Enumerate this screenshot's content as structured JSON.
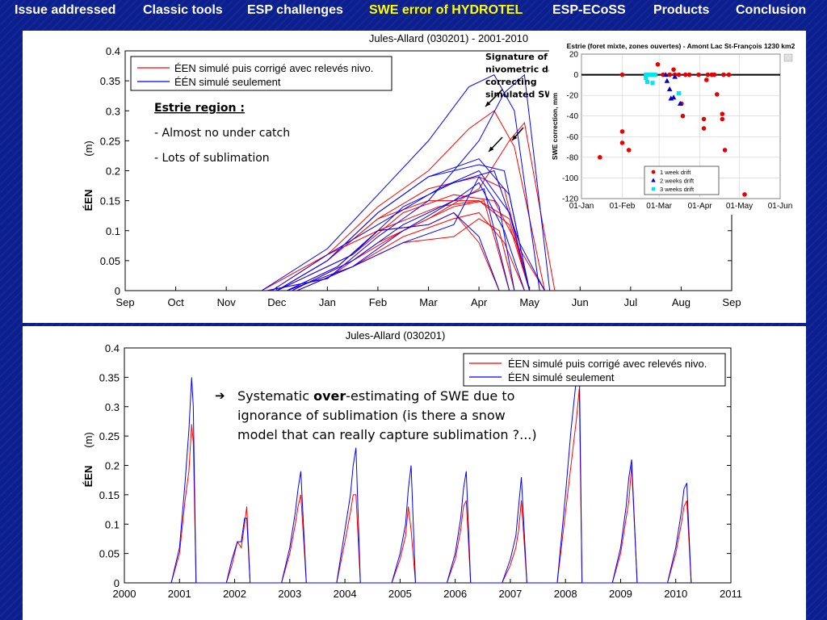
{
  "nav": {
    "items": [
      "Issue addressed",
      "Classic tools",
      "ESP challenges",
      "SWE error of HYDROTEL",
      "ESP-ECoSS",
      "Products",
      "Conclusion"
    ],
    "active_index": 3,
    "active_color": "#ffff00"
  },
  "colors": {
    "background": "#0b1f8f",
    "corrected": "#ff0000",
    "simulated": "#0000ff",
    "one_week": "#e60000",
    "two_weeks": "#0000cc",
    "three_weeks": "#00e5ee"
  },
  "top_panel": {
    "annotation": {
      "region_title": "Estrie region :",
      "bullets": [
        "- Almost no under catch",
        "- Lots of sublimation"
      ]
    },
    "arrow_label": [
      "Signature of",
      "nivometric data",
      "correcting",
      "simulated SWE"
    ]
  },
  "bottom_panel": {
    "note_arrow": "➔",
    "note_lines": [
      [
        "Systematic ",
        "over",
        "-estimating of SWE due to"
      ],
      [
        "ignorance of sublimation (is there a snow"
      ],
      [
        "model that can really capture sublimation ?...)"
      ]
    ]
  },
  "chart_data": [
    {
      "type": "line",
      "title": "Jules-Allard (030201) - 2001-2010",
      "xlabel": "",
      "ylabel": "ÉEN",
      "ylabel_unit": "(m)",
      "x_ticks": [
        "Sep",
        "Oct",
        "Nov",
        "Dec",
        "Jan",
        "Feb",
        "Mar",
        "Apr",
        "May",
        "Jun",
        "Jul",
        "Aug",
        "Sep"
      ],
      "y_ticks": [
        "0",
        "0.05",
        "0.1",
        "0.15",
        "0.2",
        "0.25",
        "0.3",
        "0.35",
        "0.4"
      ],
      "ylim": [
        0,
        0.4
      ],
      "legend_position": "top-left",
      "series": [
        {
          "name": "ÉEN simulé puis corrigé avec relevés nivo.",
          "color": "#ff0000",
          "years": [
            {
              "x": [
                2.8,
                4.0,
                5.0,
                6.0,
                7.0,
                7.6,
                7.9,
                8.5
              ],
              "y": [
                0,
                0.02,
                0.08,
                0.12,
                0.17,
                0.25,
                0.28,
                0
              ]
            },
            {
              "x": [
                3.2,
                4.2,
                5.0,
                6.0,
                6.5,
                7.0,
                7.4
              ],
              "y": [
                0,
                0.04,
                0.1,
                0.11,
                0.13,
                0.08,
                0
              ]
            },
            {
              "x": [
                3.0,
                4.5,
                5.5,
                6.5,
                7.3,
                7.8,
                8.3
              ],
              "y": [
                0,
                0.06,
                0.13,
                0.16,
                0.15,
                0.07,
                0
              ]
            },
            {
              "x": [
                3.0,
                4.0,
                5.0,
                6.0,
                7.0,
                7.6,
                8.0
              ],
              "y": [
                0,
                0.05,
                0.12,
                0.15,
                0.15,
                0.12,
                0
              ]
            },
            {
              "x": [
                3.4,
                4.5,
                5.5,
                6.5,
                7.0,
                7.4,
                7.7
              ],
              "y": [
                0,
                0.04,
                0.08,
                0.09,
                0.12,
                0.1,
                0
              ]
            },
            {
              "x": [
                2.9,
                4.0,
                5.0,
                6.2,
                7.0,
                7.6,
                8.0
              ],
              "y": [
                0,
                0.06,
                0.1,
                0.14,
                0.15,
                0.11,
                0
              ]
            },
            {
              "x": [
                3.2,
                4.5,
                5.5,
                6.5,
                7.0,
                7.5,
                7.9
              ],
              "y": [
                0,
                0.04,
                0.09,
                0.12,
                0.13,
                0.08,
                0
              ]
            },
            {
              "x": [
                2.7,
                4.0,
                5.0,
                6.0,
                6.8,
                7.3,
                7.7,
                8.3
              ],
              "y": [
                0,
                0.06,
                0.14,
                0.2,
                0.27,
                0.3,
                0.24,
                0
              ]
            },
            {
              "x": [
                3.0,
                4.0,
                5.0,
                6.0,
                7.0,
                7.5,
                8.0
              ],
              "y": [
                0,
                0.05,
                0.12,
                0.17,
                0.19,
                0.17,
                0
              ]
            },
            {
              "x": [
                3.3,
                4.5,
                5.5,
                6.5,
                7.1,
                7.6
              ],
              "y": [
                0,
                0.05,
                0.1,
                0.14,
                0.15,
                0
              ]
            }
          ]
        },
        {
          "name": "ÉÉN simulé seulement",
          "color": "#0000ff",
          "years": [
            {
              "x": [
                2.8,
                4.0,
                5.0,
                6.0,
                7.0,
                7.5,
                7.9,
                8.4
              ],
              "y": [
                0,
                0.02,
                0.09,
                0.15,
                0.25,
                0.33,
                0.36,
                0
              ]
            },
            {
              "x": [
                3.2,
                4.2,
                5.0,
                6.0,
                6.5,
                7.0,
                7.4
              ],
              "y": [
                0,
                0.04,
                0.1,
                0.11,
                0.13,
                0.09,
                0
              ]
            },
            {
              "x": [
                3.0,
                4.5,
                5.5,
                6.5,
                7.3,
                7.8,
                8.3
              ],
              "y": [
                0,
                0.06,
                0.14,
                0.18,
                0.2,
                0.08,
                0
              ]
            },
            {
              "x": [
                3.0,
                4.0,
                5.0,
                6.0,
                7.0,
                7.6,
                8.0
              ],
              "y": [
                0,
                0.05,
                0.13,
                0.19,
                0.22,
                0.16,
                0
              ]
            },
            {
              "x": [
                3.4,
                4.5,
                5.5,
                6.5,
                7.0,
                7.4,
                7.7
              ],
              "y": [
                0,
                0.04,
                0.08,
                0.11,
                0.19,
                0.14,
                0
              ]
            },
            {
              "x": [
                2.9,
                4.0,
                5.0,
                6.2,
                7.0,
                7.6,
                8.0
              ],
              "y": [
                0,
                0.06,
                0.11,
                0.17,
                0.2,
                0.13,
                0
              ]
            },
            {
              "x": [
                3.2,
                4.5,
                5.5,
                6.5,
                7.0,
                7.5,
                7.9
              ],
              "y": [
                0,
                0.04,
                0.1,
                0.15,
                0.18,
                0.1,
                0
              ]
            },
            {
              "x": [
                2.7,
                4.0,
                5.0,
                6.0,
                6.8,
                7.3,
                7.7,
                8.2
              ],
              "y": [
                0,
                0.07,
                0.16,
                0.25,
                0.34,
                0.36,
                0.3,
                0
              ]
            },
            {
              "x": [
                3.0,
                4.0,
                5.0,
                6.0,
                7.0,
                7.5,
                8.0
              ],
              "y": [
                0,
                0.05,
                0.13,
                0.19,
                0.21,
                0.2,
                0
              ]
            },
            {
              "x": [
                3.3,
                4.5,
                5.5,
                6.5,
                7.1,
                7.6
              ],
              "y": [
                0,
                0.05,
                0.11,
                0.15,
                0.17,
                0
              ]
            }
          ]
        }
      ]
    },
    {
      "type": "scatter",
      "title": "Estrie (foret mixte, zones ouvertes) - Amont Lac St-François 1230 km2",
      "xlabel": "",
      "ylabel": "SWE correction, mm",
      "x_ticks": [
        "01-Jan",
        "01-Feb",
        "01-Mar",
        "01-Apr",
        "01-May",
        "01-Jun"
      ],
      "y_ticks": [
        "20",
        "0",
        "-20",
        "-40",
        "-60",
        "-80",
        "-100",
        "-120"
      ],
      "xlim_days": [
        0,
        151
      ],
      "ylim": [
        -120,
        20
      ],
      "grid": true,
      "legend_position": "bottom-right",
      "series": [
        {
          "name": "1 week drift",
          "marker": "circle",
          "color": "#e60000",
          "points": [
            [
              14,
              -80
            ],
            [
              31,
              0
            ],
            [
              31,
              -55
            ],
            [
              31,
              -66
            ],
            [
              36,
              -73
            ],
            [
              58,
              10
            ],
            [
              62,
              0
            ],
            [
              67,
              0
            ],
            [
              70,
              5
            ],
            [
              71,
              0
            ],
            [
              74,
              0
            ],
            [
              76,
              -28
            ],
            [
              77,
              -40
            ],
            [
              79,
              0
            ],
            [
              82,
              0
            ],
            [
              89,
              0
            ],
            [
              93,
              -43
            ],
            [
              93,
              -52
            ],
            [
              95,
              -5
            ],
            [
              96,
              0
            ],
            [
              99,
              0
            ],
            [
              101,
              0
            ],
            [
              103,
              -19
            ],
            [
              107,
              -38
            ],
            [
              107,
              -43
            ],
            [
              108,
              0
            ],
            [
              109,
              -73
            ],
            [
              112,
              0
            ],
            [
              124,
              -116
            ]
          ]
        },
        {
          "name": "2 weeks drift",
          "marker": "triangle",
          "color": "#0000cc",
          "points": [
            [
              64,
              0
            ],
            [
              65,
              -6
            ],
            [
              67,
              -14
            ],
            [
              68,
              -23
            ],
            [
              70,
              -22
            ],
            [
              71,
              -2
            ],
            [
              75,
              -28
            ]
          ]
        },
        {
          "name": "3 weeks drift",
          "marker": "square",
          "color": "#00e5ee",
          "points": [
            [
              49,
              0
            ],
            [
              49,
              -3
            ],
            [
              50,
              -7
            ],
            [
              52,
              0
            ],
            [
              54,
              -8
            ],
            [
              55,
              0
            ],
            [
              56,
              0
            ],
            [
              74,
              -18
            ]
          ]
        }
      ]
    },
    {
      "type": "line",
      "title": "Jules-Allard (030201)",
      "xlabel": "",
      "ylabel": "ÉEN",
      "ylabel_unit": "(m)",
      "x_ticks": [
        "2000",
        "2001",
        "2002",
        "2003",
        "2004",
        "2005",
        "2006",
        "2007",
        "2008",
        "2009",
        "2010",
        "2011"
      ],
      "y_ticks": [
        "0",
        "0.05",
        "0.1",
        "0.15",
        "0.2",
        "0.25",
        "0.3",
        "0.35",
        "0.4"
      ],
      "xlim": [
        2000,
        2011
      ],
      "ylim": [
        0,
        0.4
      ],
      "legend_position": "top-right",
      "series": [
        {
          "name": "ÉEN simulé puis corrigé avec relevés nivo.",
          "color": "#ff0000",
          "x": [
            2000.85,
            2001.0,
            2001.1,
            2001.17,
            2001.22,
            2001.25,
            2001.3,
            2001.85,
            2001.95,
            2002.05,
            2002.12,
            2002.18,
            2002.22,
            2002.28,
            2002.85,
            2003.0,
            2003.1,
            2003.15,
            2003.2,
            2003.3,
            2003.85,
            2004.0,
            2004.1,
            2004.15,
            2004.2,
            2004.28,
            2004.85,
            2005.0,
            2005.1,
            2005.15,
            2005.2,
            2005.28,
            2005.85,
            2006.0,
            2006.1,
            2006.15,
            2006.2,
            2006.28,
            2006.85,
            2007.0,
            2007.1,
            2007.15,
            2007.2,
            2007.3,
            2007.85,
            2008.0,
            2008.1,
            2008.2,
            2008.25,
            2008.3,
            2008.85,
            2009.0,
            2009.1,
            2009.15,
            2009.2,
            2009.3,
            2009.85,
            2010.0,
            2010.1,
            2010.15,
            2010.2,
            2010.28
          ],
          "y": [
            0,
            0.05,
            0.14,
            0.19,
            0.27,
            0.24,
            0,
            0,
            0.03,
            0.07,
            0.06,
            0.1,
            0.13,
            0,
            0,
            0.05,
            0.1,
            0.13,
            0.15,
            0,
            0,
            0.07,
            0.12,
            0.15,
            0.15,
            0,
            0,
            0.04,
            0.08,
            0.13,
            0.09,
            0,
            0,
            0.04,
            0.09,
            0.13,
            0.14,
            0,
            0,
            0.03,
            0.06,
            0.09,
            0.14,
            0,
            0,
            0.12,
            0.2,
            0.28,
            0.33,
            0,
            0,
            0.05,
            0.11,
            0.14,
            0.2,
            0,
            0,
            0.05,
            0.1,
            0.13,
            0.14,
            0
          ]
        },
        {
          "name": "ÉEN simulé seulement",
          "color": "#0000ff",
          "x": [
            2000.85,
            2001.0,
            2001.1,
            2001.17,
            2001.22,
            2001.25,
            2001.3,
            2001.85,
            2001.95,
            2002.05,
            2002.12,
            2002.18,
            2002.22,
            2002.28,
            2002.85,
            2003.0,
            2003.1,
            2003.15,
            2003.2,
            2003.3,
            2003.85,
            2004.0,
            2004.1,
            2004.15,
            2004.2,
            2004.28,
            2004.85,
            2005.0,
            2005.1,
            2005.15,
            2005.2,
            2005.28,
            2005.85,
            2006.0,
            2006.1,
            2006.15,
            2006.2,
            2006.28,
            2006.85,
            2007.0,
            2007.1,
            2007.15,
            2007.2,
            2007.3,
            2007.85,
            2008.0,
            2008.1,
            2008.2,
            2008.25,
            2008.3,
            2008.85,
            2009.0,
            2009.1,
            2009.15,
            2009.2,
            2009.3,
            2009.85,
            2010.0,
            2010.1,
            2010.15,
            2010.2,
            2010.28
          ],
          "y": [
            0,
            0.06,
            0.17,
            0.26,
            0.35,
            0.3,
            0,
            0,
            0.04,
            0.07,
            0.07,
            0.11,
            0.11,
            0,
            0,
            0.06,
            0.12,
            0.16,
            0.19,
            0,
            0,
            0.09,
            0.15,
            0.2,
            0.23,
            0,
            0,
            0.05,
            0.1,
            0.16,
            0.2,
            0,
            0,
            0.05,
            0.11,
            0.16,
            0.19,
            0,
            0,
            0.04,
            0.08,
            0.13,
            0.18,
            0,
            0,
            0.15,
            0.26,
            0.35,
            0.38,
            0,
            0,
            0.06,
            0.13,
            0.18,
            0.21,
            0,
            0,
            0.06,
            0.12,
            0.16,
            0.17,
            0
          ]
        }
      ]
    }
  ]
}
